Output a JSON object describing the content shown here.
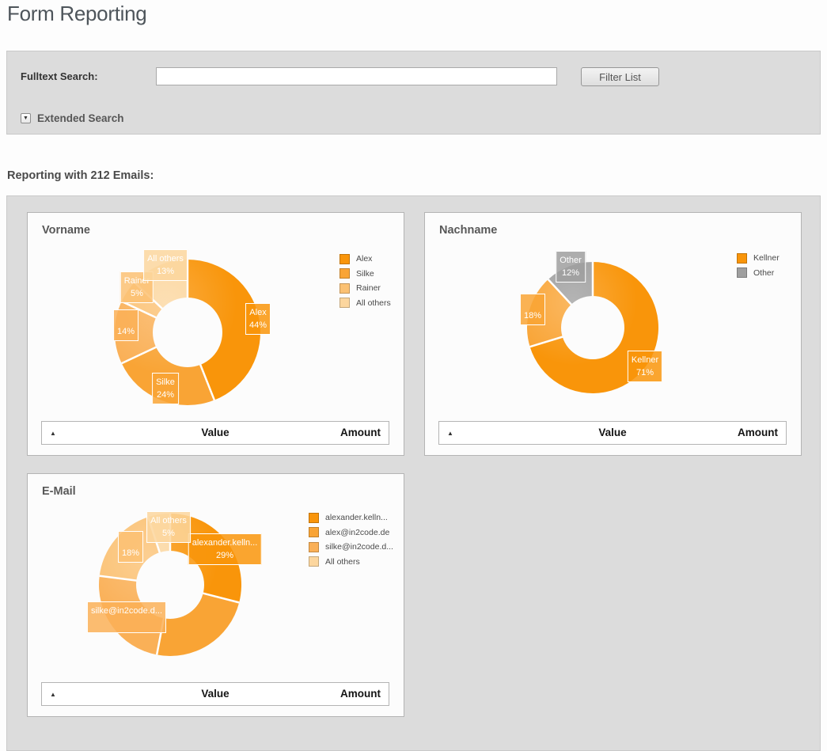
{
  "page": {
    "title": "Form Reporting"
  },
  "search": {
    "label": "Fulltext Search:",
    "input_value": "",
    "button_label": "Filter List",
    "extended_label": "Extended Search",
    "toggle_icon": "▼"
  },
  "reporting": {
    "heading": "Reporting with 212 Emails:"
  },
  "table_header": {
    "sort_icon": "▲",
    "value": "Value",
    "amount": "Amount"
  },
  "colors": {
    "palette": [
      "#f9950a",
      "#f9a435",
      "#fab057",
      "#fbc173",
      "#fcd69e"
    ],
    "other_gray": "#9f9f9f",
    "panel_bg": "#dcdcdc",
    "card_bg": "#fcfcfc"
  },
  "chart_data": [
    {
      "type": "pie",
      "donut": true,
      "title": "Vorname",
      "unit": "%",
      "slices": [
        {
          "name": "Alex",
          "value": 44,
          "box_label": "Alex",
          "box_percent": "44%",
          "color": "#f9950a"
        },
        {
          "name": "Silke",
          "value": 24,
          "box_label": "Silke",
          "box_percent": "24%",
          "color": "#f9a435"
        },
        {
          "name": "",
          "value": 14,
          "box_label": "",
          "box_percent": "14%",
          "color": "#fab057"
        },
        {
          "name": "Rainer",
          "value": 5,
          "box_label": "Rainer",
          "box_percent": "5%",
          "color": "#fbc173"
        },
        {
          "name": "All others",
          "value": 13,
          "box_label": "All others",
          "box_percent": "13%",
          "color": "#fcd69e"
        }
      ],
      "legend": [
        {
          "label": "Alex",
          "color": "#f9950a"
        },
        {
          "label": "Silke",
          "color": "#f9a435"
        },
        {
          "label": "Rainer",
          "color": "#fbc173"
        },
        {
          "label": "All others",
          "color": "#fcd69e"
        }
      ]
    },
    {
      "type": "pie",
      "donut": true,
      "title": "Nachname",
      "unit": "%",
      "slices": [
        {
          "name": "Kellner",
          "value": 71,
          "box_label": "Kellner",
          "box_percent": "71%",
          "color": "#f9950a"
        },
        {
          "name": "",
          "value": 18,
          "box_label": "",
          "box_percent": "18%",
          "color": "#f9a435"
        },
        {
          "name": "Other",
          "value": 12,
          "box_label": "Other",
          "box_percent": "12%",
          "color": "#9f9f9f"
        }
      ],
      "legend": [
        {
          "label": "Kellner",
          "color": "#f9950a"
        },
        {
          "label": "Other",
          "color": "#9f9f9f"
        }
      ]
    },
    {
      "type": "pie",
      "donut": true,
      "title": "E-Mail",
      "unit": "%",
      "slices": [
        {
          "name": "alexander.kelln...",
          "value": 29,
          "box_label": "alexander.kelln...",
          "box_percent": "29%",
          "color": "#f9950a"
        },
        {
          "name": "alex@in2code.de",
          "value": 24,
          "box_label": null,
          "box_percent": null,
          "color": "#f9a435"
        },
        {
          "name": "silke@in2code.d...",
          "value": 24,
          "box_label": "silke@in2code.d...",
          "box_percent": "",
          "color": "#fab057"
        },
        {
          "name": "",
          "value": 18,
          "box_label": "",
          "box_percent": "18%",
          "color": "#fbc173"
        },
        {
          "name": "All others",
          "value": 5,
          "box_label": "All others",
          "box_percent": "5%",
          "color": "#fcd69e"
        }
      ],
      "legend": [
        {
          "label": "alexander.kelln...",
          "color": "#f9950a"
        },
        {
          "label": "alex@in2code.de",
          "color": "#f9a435"
        },
        {
          "label": "silke@in2code.d...",
          "color": "#fab057"
        },
        {
          "label": "All others",
          "color": "#fcd69e"
        }
      ]
    }
  ]
}
